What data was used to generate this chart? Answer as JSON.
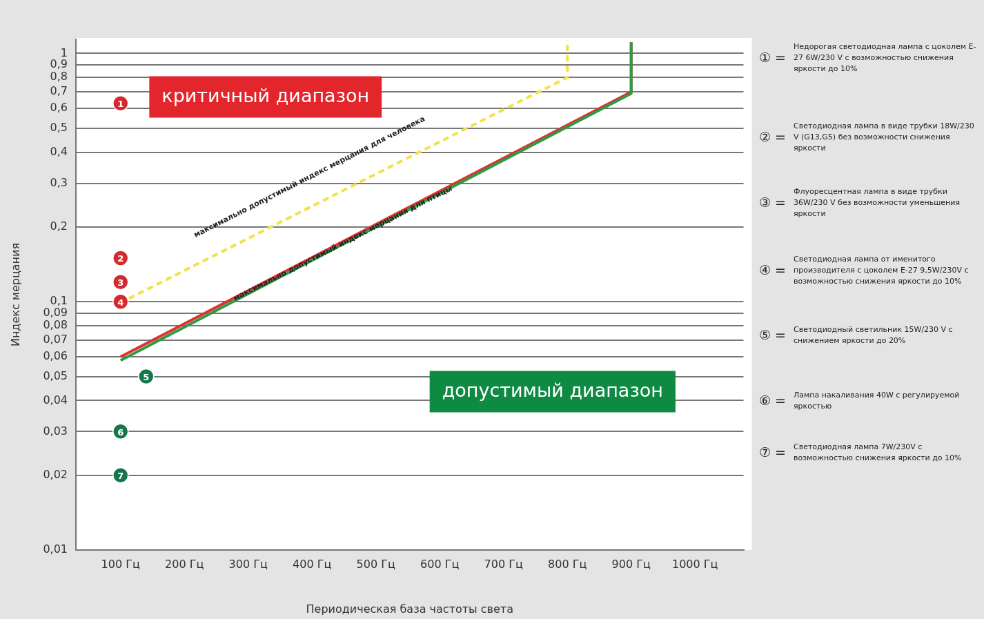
{
  "chart_data": {
    "type": "scatter",
    "xlabel": "Периодическая база частоты света",
    "ylabel": "Индекс мерцания",
    "log": "y",
    "grid": "y",
    "legend": false,
    "marker": "circle",
    "xlim": [
      30,
      1076
    ],
    "xticks": [
      {
        "value": 100,
        "label": "100 Гц"
      },
      {
        "value": 200,
        "label": "200 Гц"
      },
      {
        "value": 300,
        "label": "300 Гц"
      },
      {
        "value": 400,
        "label": "400 Гц"
      },
      {
        "value": 500,
        "label": "500 Гц"
      },
      {
        "value": 600,
        "label": "600 Гц"
      },
      {
        "value": 700,
        "label": "700 Гц"
      },
      {
        "value": 800,
        "label": "800 Гц"
      },
      {
        "value": 900,
        "label": "900 Гц"
      },
      {
        "value": 1000,
        "label": "1000 Гц"
      }
    ],
    "ylim": [
      0.01,
      1.14
    ],
    "yticks": [
      {
        "value": 0.01,
        "label": "0,01"
      },
      {
        "value": 0.02,
        "label": "0,02"
      },
      {
        "value": 0.03,
        "label": "0,03"
      },
      {
        "value": 0.04,
        "label": "0,04"
      },
      {
        "value": 0.05,
        "label": "0,05"
      },
      {
        "value": 0.06,
        "label": "0,06"
      },
      {
        "value": 0.07,
        "label": "0,07"
      },
      {
        "value": 0.08,
        "label": "0,08"
      },
      {
        "value": 0.09,
        "label": "0,09"
      },
      {
        "value": 0.1,
        "label": "0,1"
      },
      {
        "value": 0.2,
        "label": "0,2"
      },
      {
        "value": 0.3,
        "label": "0,3"
      },
      {
        "value": 0.4,
        "label": "0,4"
      },
      {
        "value": 0.5,
        "label": "0,5"
      },
      {
        "value": 0.6,
        "label": "0,6"
      },
      {
        "value": 0.7,
        "label": "0,7"
      },
      {
        "value": 0.8,
        "label": "0,8"
      },
      {
        "value": 0.9,
        "label": "0,9"
      },
      1
    ],
    "series": [
      {
        "type": "line",
        "color": "#2e9a45",
        "x": [
          100,
          900,
          900
        ],
        "values": [
          0.058,
          0.69,
          1.11
        ],
        "marker": "none",
        "line_style": "solid"
      },
      {
        "type": "line",
        "color": "#e03131",
        "x": [
          100,
          900,
          900
        ],
        "values": [
          0.06,
          0.7,
          1.11
        ],
        "marker": "none",
        "line_style": "solid"
      },
      {
        "type": "line",
        "color": "#f2e24a",
        "x": [
          113,
          800,
          800
        ],
        "values": [
          0.103,
          0.8,
          1.13
        ],
        "marker": "none",
        "line_style": "dashed"
      },
      {
        "name": "1",
        "color": "#d42a2f",
        "x": [
          100
        ],
        "values": [
          0.63
        ]
      },
      {
        "name": "2",
        "color": "#d42a2f",
        "x": [
          100
        ],
        "values": [
          0.15
        ]
      },
      {
        "name": "3",
        "color": "#d42a2f",
        "x": [
          100
        ],
        "values": [
          0.12
        ]
      },
      {
        "name": "4",
        "color": "#d42a2f",
        "x": [
          100
        ],
        "values": [
          0.1
        ]
      },
      {
        "name": "5",
        "color": "#14764a",
        "x": [
          140
        ],
        "values": [
          0.05
        ]
      },
      {
        "name": "6",
        "color": "#14764a",
        "x": [
          100
        ],
        "values": [
          0.03
        ]
      },
      {
        "name": "7",
        "color": "#14764a",
        "x": [
          100
        ],
        "values": [
          0.02
        ]
      }
    ],
    "annotations": [
      "критичный диапазон",
      "допустимый диапазон",
      "максимально допустимый индекс мерцания для человека",
      "максимально допустимый индекс мерцания для птицы",
      "① = Недорогая светодиодная лампа с цоколем E-27 6W/230 V с возможностью снижения яркости до 10%",
      "② = Светодиодная лампа в виде трубки 18W/230 V (G13,G5) без возможности снижения яркости",
      "③ = Флуоресцентная лампа в виде трубки 36W/230 V без возможности уменьшения яркости",
      "④ = Светодиодная лампа от именитого производителя с цоколем E-27 9,5W/230V с возможностью снижения яркости до 10%",
      "⑤ = Светодиодный светильник 15W/230 V с снижением яркости до 20%",
      "⑥ = Лампа накаливания 40W с регулируемой яркостью",
      "⑦ = Светодиодная лампа 7W/230V с возможностью снижения яркости до 10%"
    ]
  }
}
